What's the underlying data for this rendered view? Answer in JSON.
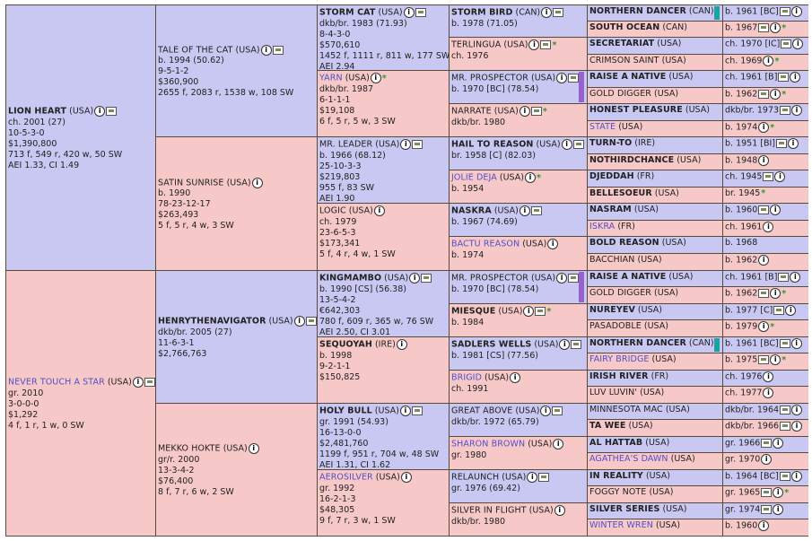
{
  "gen1": [
    {
      "name": "LION HEART",
      "bold": true,
      "link": false,
      "country": "(USA)",
      "icons": [
        "info",
        "cam"
      ],
      "lines": [
        "ch. 2001 (27)",
        "10-5-3-0",
        "$1,390,800",
        "713 f, 549 r, 420 w, 50 SW",
        "AEI 1.33, CI 1.49"
      ]
    },
    {
      "name": "NEVER TOUCH A STAR",
      "bold": false,
      "link": true,
      "country": "(USA)",
      "icons": [
        "info",
        "cam"
      ],
      "lines": [
        "gr. 2010",
        "3-0-0-0",
        "$1,292",
        "4 f, 1 r, 1 w, 0 SW"
      ]
    }
  ],
  "gen2": [
    {
      "name": "TALE OF THE CAT",
      "bold": false,
      "link": false,
      "country": "(USA)",
      "icons": [
        "info",
        "cam"
      ],
      "lines": [
        "b. 1994 (50.62)",
        "9-5-1-2",
        "$360,900",
        "2655 f, 2083 r, 1538 w, 108 SW"
      ]
    },
    {
      "name": "SATIN SUNRISE",
      "bold": false,
      "link": false,
      "country": "(USA)",
      "icons": [
        "info"
      ],
      "lines": [
        "b. 1990",
        "78-23-12-17",
        "$263,493",
        "5 f, 5 r, 4 w, 3 SW"
      ]
    },
    {
      "name": "HENRYTHENAVIGATOR",
      "bold": true,
      "link": false,
      "country": "(USA)",
      "icons": [
        "info",
        "cam"
      ],
      "lines": [
        "dkb/br. 2005 (27)",
        "11-6-3-1",
        "$2,766,763"
      ]
    },
    {
      "name": "MEKKO HOKTE",
      "bold": false,
      "link": false,
      "country": "(USA)",
      "icons": [
        "info"
      ],
      "lines": [
        "gr/r. 2000",
        "13-3-4-2",
        "$76,400",
        "8 f, 7 r, 6 w, 2 SW"
      ]
    }
  ],
  "gen3": [
    {
      "name": "STORM CAT",
      "bold": true,
      "link": false,
      "country": "(USA)",
      "icons": [
        "info",
        "cam"
      ],
      "lines": [
        "dkb/br. 1983 (71.93)",
        "8-4-3-0",
        "$570,610",
        "1452 f, 1111 r, 811 w, 177 SW",
        "AEI 2.94"
      ]
    },
    {
      "name": "YARN",
      "bold": false,
      "link": true,
      "country": "(USA)",
      "icons": [
        "info",
        "star"
      ],
      "lines": [
        "dkb/br. 1987",
        "6-1-1-1",
        "$19,108",
        "6 f, 5 r, 5 w, 3 SW"
      ]
    },
    {
      "name": "MR. LEADER",
      "bold": false,
      "link": false,
      "country": "(USA)",
      "icons": [
        "info",
        "cam"
      ],
      "lines": [
        "b. 1966 (68.12)",
        "25-10-3-3",
        "$219,803",
        "955 f, 83 SW",
        "AEI 1.90"
      ]
    },
    {
      "name": "LOGIC",
      "bold": false,
      "link": false,
      "country": "(USA)",
      "icons": [
        "info"
      ],
      "lines": [
        "ch. 1979",
        "23-6-5-3",
        "$173,341",
        "5 f, 4 r, 4 w, 1 SW"
      ]
    },
    {
      "name": "KINGMAMBO",
      "bold": true,
      "link": false,
      "country": "(USA)",
      "icons": [
        "info",
        "cam"
      ],
      "lines": [
        "b. 1990 [CS] (56.38)",
        "13-5-4-2",
        "€642,303",
        "780 f, 609 r, 365 w, 76 SW",
        "AEI 2.50, CI 3.01"
      ]
    },
    {
      "name": "SEQUOYAH",
      "bold": true,
      "link": false,
      "country": "(IRE)",
      "icons": [
        "info"
      ],
      "lines": [
        "b. 1998",
        "9-2-1-1",
        "$150,825"
      ]
    },
    {
      "name": "HOLY BULL",
      "bold": true,
      "link": false,
      "country": "(USA)",
      "icons": [
        "info",
        "cam"
      ],
      "lines": [
        "gr. 1991 (54.93)",
        "16-13-0-0",
        "$2,481,760",
        "1199 f, 951 r, 704 w, 48 SW",
        "AEI 1.31, CI 1.62"
      ]
    },
    {
      "name": "AEROSILVER",
      "bold": false,
      "link": true,
      "country": "(USA)",
      "icons": [
        "info"
      ],
      "lines": [
        "gr. 1992",
        "16-2-1-3",
        "$48,305",
        "9 f, 7 r, 3 w, 1 SW"
      ]
    }
  ],
  "gen4": [
    {
      "name": "STORM BIRD",
      "bold": true,
      "link": false,
      "country": "(CAN)",
      "icons": [
        "info",
        "cam"
      ],
      "lines": [
        "b. 1978 (71.05)"
      ]
    },
    {
      "name": "TERLINGUA",
      "bold": false,
      "link": false,
      "country": "(USA)",
      "icons": [
        "info",
        "cam",
        "star"
      ],
      "lines": [
        "ch. 1976"
      ]
    },
    {
      "name": "MR. PROSPECTOR",
      "bold": false,
      "link": false,
      "country": "(USA)",
      "icons": [
        "info",
        "cam"
      ],
      "lines": [
        "b. 1970 [BC] (78.54)"
      ],
      "bar": "purple"
    },
    {
      "name": "NARRATE",
      "bold": false,
      "link": false,
      "country": "(USA)",
      "icons": [
        "info",
        "cam",
        "star"
      ],
      "lines": [
        "dkb/br. 1980"
      ]
    },
    {
      "name": "HAIL TO REASON",
      "bold": true,
      "link": false,
      "country": "(USA)",
      "icons": [
        "info",
        "cam"
      ],
      "lines": [
        "br. 1958 [C] (82.03)"
      ]
    },
    {
      "name": "JOLIE DEJA",
      "bold": false,
      "link": true,
      "country": "(USA)",
      "icons": [
        "info",
        "star"
      ],
      "lines": [
        "b. 1954"
      ]
    },
    {
      "name": "NASKRA",
      "bold": true,
      "link": false,
      "country": "(USA)",
      "icons": [
        "info",
        "cam"
      ],
      "lines": [
        "b. 1967 (74.69)"
      ]
    },
    {
      "name": "BACTU REASON",
      "bold": false,
      "link": true,
      "country": "(USA)",
      "icons": [
        "info"
      ],
      "lines": [
        "b. 1974"
      ]
    },
    {
      "name": "MR. PROSPECTOR",
      "bold": false,
      "link": false,
      "country": "(USA)",
      "icons": [
        "info",
        "cam"
      ],
      "lines": [
        "b. 1970 [BC] (78.54)"
      ],
      "bar": "purple"
    },
    {
      "name": "MIESQUE",
      "bold": true,
      "link": false,
      "country": "(USA)",
      "icons": [
        "info",
        "cam",
        "star"
      ],
      "lines": [
        "b. 1984"
      ]
    },
    {
      "name": "SADLERS WELLS",
      "bold": true,
      "link": false,
      "country": "(USA)",
      "icons": [
        "info",
        "cam"
      ],
      "lines": [
        "b. 1981 [CS] (77.56)"
      ]
    },
    {
      "name": "BRIGID",
      "bold": false,
      "link": true,
      "country": "(USA)",
      "icons": [
        "info"
      ],
      "lines": [
        "ch. 1991"
      ]
    },
    {
      "name": "GREAT ABOVE",
      "bold": false,
      "link": false,
      "country": "(USA)",
      "icons": [
        "info",
        "cam"
      ],
      "lines": [
        "dkb/br. 1972 (65.79)"
      ]
    },
    {
      "name": "SHARON BROWN",
      "bold": false,
      "link": true,
      "country": "(USA)",
      "icons": [
        "info"
      ],
      "lines": [
        "gr. 1980"
      ]
    },
    {
      "name": "RELAUNCH",
      "bold": false,
      "link": false,
      "country": "(USA)",
      "icons": [
        "info",
        "cam"
      ],
      "lines": [
        "gr. 1976 (69.42)"
      ]
    },
    {
      "name": "SILVER IN FLIGHT",
      "bold": false,
      "link": false,
      "country": "(USA)",
      "icons": [
        "info"
      ],
      "lines": [
        "dkb/br. 1980"
      ]
    }
  ],
  "gen5": [
    {
      "name": "NORTHERN DANCER",
      "bold": true,
      "link": false,
      "country": "(CAN)",
      "bar": "teal",
      "year": "b. 1961 [BC]",
      "icons": [
        "cam",
        "info"
      ]
    },
    {
      "name": "SOUTH OCEAN",
      "bold": true,
      "link": false,
      "country": "(CAN)",
      "year": "b. 1967",
      "icons": [
        "cam",
        "info",
        "star"
      ]
    },
    {
      "name": "SECRETARIAT",
      "bold": true,
      "link": false,
      "country": "(USA)",
      "year": "ch. 1970 [IC]",
      "icons": [
        "cam",
        "info"
      ]
    },
    {
      "name": "CRIMSON SAINT",
      "bold": false,
      "link": false,
      "country": "(USA)",
      "year": "ch. 1969",
      "icons": [
        "info",
        "star"
      ]
    },
    {
      "name": "RAISE A NATIVE",
      "bold": true,
      "link": false,
      "country": "(USA)",
      "year": "ch. 1961 [B]",
      "icons": [
        "cam",
        "info"
      ]
    },
    {
      "name": "GOLD DIGGER",
      "bold": false,
      "link": false,
      "country": "(USA)",
      "year": "b. 1962",
      "icons": [
        "cam",
        "info",
        "star"
      ]
    },
    {
      "name": "HONEST PLEASURE",
      "bold": true,
      "link": false,
      "country": "(USA)",
      "year": "dkb/br. 1973",
      "icons": [
        "cam",
        "info"
      ]
    },
    {
      "name": "STATE",
      "bold": false,
      "link": true,
      "country": "(USA)",
      "year": "b. 1974",
      "icons": [
        "info",
        "star"
      ]
    },
    {
      "name": "TURN-TO",
      "bold": true,
      "link": false,
      "country": "(IRE)",
      "year": "b. 1951 [BI]",
      "icons": [
        "cam",
        "info"
      ]
    },
    {
      "name": "NOTHIRDCHANCE",
      "bold": true,
      "link": false,
      "country": "(USA)",
      "year": "b. 1948",
      "icons": [
        "info"
      ]
    },
    {
      "name": "DJEDDAH",
      "bold": true,
      "link": false,
      "country": "(FR)",
      "year": "ch. 1945",
      "icons": [
        "cam",
        "info"
      ]
    },
    {
      "name": "BELLESOEUR",
      "bold": true,
      "link": false,
      "country": "(USA)",
      "year": "br. 1945",
      "icons": [
        "star"
      ]
    },
    {
      "name": "NASRAM",
      "bold": true,
      "link": false,
      "country": "(USA)",
      "year": "b. 1960",
      "icons": [
        "cam",
        "info"
      ]
    },
    {
      "name": "ISKRA",
      "bold": false,
      "link": true,
      "country": "(FR)",
      "year": "ch. 1961",
      "icons": [
        "info"
      ]
    },
    {
      "name": "BOLD REASON",
      "bold": true,
      "link": false,
      "country": "(USA)",
      "year": "b. 1968",
      "icons": []
    },
    {
      "name": "BACCHIAN",
      "bold": false,
      "link": false,
      "country": "(USA)",
      "year": "b. 1962",
      "icons": [
        "info"
      ]
    },
    {
      "name": "RAISE A NATIVE",
      "bold": true,
      "link": false,
      "country": "(USA)",
      "year": "ch. 1961 [B]",
      "icons": [
        "cam",
        "info"
      ]
    },
    {
      "name": "GOLD DIGGER",
      "bold": false,
      "link": false,
      "country": "(USA)",
      "year": "b. 1962",
      "icons": [
        "cam",
        "info",
        "star"
      ]
    },
    {
      "name": "NUREYEV",
      "bold": true,
      "link": false,
      "country": "(USA)",
      "year": "b. 1977 [C]",
      "icons": [
        "cam",
        "info"
      ]
    },
    {
      "name": "PASADOBLE",
      "bold": false,
      "link": false,
      "country": "(USA)",
      "year": "b. 1979",
      "icons": [
        "info",
        "star"
      ]
    },
    {
      "name": "NORTHERN DANCER",
      "bold": true,
      "link": false,
      "country": "(CAN)",
      "bar": "teal",
      "year": "b. 1961 [BC]",
      "icons": [
        "cam",
        "info"
      ]
    },
    {
      "name": "FAIRY BRIDGE",
      "bold": false,
      "link": true,
      "country": "(USA)",
      "year": "b. 1975",
      "icons": [
        "cam",
        "info",
        "star"
      ]
    },
    {
      "name": "IRISH RIVER",
      "bold": true,
      "link": false,
      "country": "(FR)",
      "year": "ch. 1976",
      "icons": [
        "info"
      ]
    },
    {
      "name": "LUV LUVIN'",
      "bold": false,
      "link": false,
      "country": "(USA)",
      "year": "ch. 1977",
      "icons": [
        "info"
      ]
    },
    {
      "name": "MINNESOTA MAC",
      "bold": false,
      "link": false,
      "country": "(USA)",
      "year": "dkb/br. 1964",
      "icons": [
        "cam",
        "info"
      ]
    },
    {
      "name": "TA WEE",
      "bold": true,
      "link": false,
      "country": "(USA)",
      "year": "dkb/br. 1966",
      "icons": [
        "cam",
        "info"
      ]
    },
    {
      "name": "AL HATTAB",
      "bold": true,
      "link": false,
      "country": "(USA)",
      "year": "gr. 1966",
      "icons": [
        "cam",
        "info"
      ]
    },
    {
      "name": "AGATHEA'S DAWN",
      "bold": false,
      "link": true,
      "country": "(USA)",
      "year": "gr. 1970",
      "icons": [
        "info"
      ]
    },
    {
      "name": "IN REALITY",
      "bold": true,
      "link": false,
      "country": "(USA)",
      "year": "b. 1964 [BC]",
      "icons": [
        "cam",
        "info"
      ]
    },
    {
      "name": "FOGGY NOTE",
      "bold": false,
      "link": false,
      "country": "(USA)",
      "year": "gr. 1965",
      "icons": [
        "cam",
        "info",
        "star"
      ]
    },
    {
      "name": "SILVER SERIES",
      "bold": true,
      "link": false,
      "country": "(USA)",
      "year": "gr. 1974",
      "icons": [
        "cam",
        "info"
      ]
    },
    {
      "name": "WINTER WREN",
      "bold": false,
      "link": true,
      "country": "(USA)",
      "year": "b. 1960",
      "icons": [
        "info"
      ]
    }
  ],
  "colors": {
    "male": "#c8c8f2",
    "female": "#f7c8c8",
    "border": "#5a4a3a",
    "link": "#5050c8",
    "star": "#2c9a2c",
    "teal_bar": "#1aa3a3",
    "purple_bar": "#9960d0"
  }
}
